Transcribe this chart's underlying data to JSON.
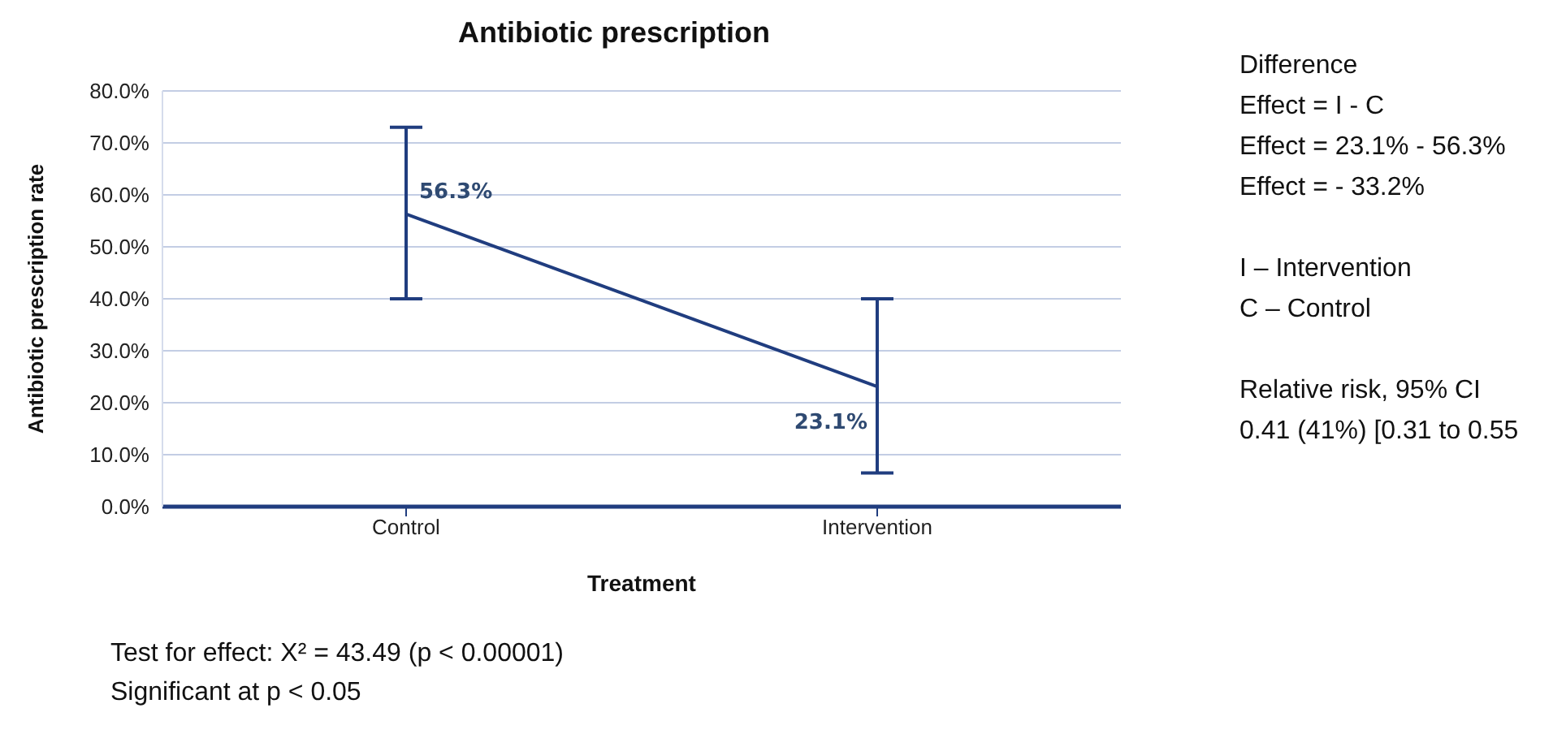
{
  "chart_data": {
    "type": "line",
    "title": "Antibiotic prescription",
    "xlabel": "Treatment",
    "ylabel": "Antibiotic prescription rate",
    "categories": [
      "Control",
      "Intervention"
    ],
    "series": [
      {
        "color": "#203d7f",
        "values": [
          56.3,
          23.1
        ],
        "errors": [
          [
            40,
            73
          ],
          [
            6.5,
            40
          ]
        ],
        "value_labels": [
          "56.3%",
          "23.1%"
        ]
      }
    ],
    "ylim": [
      0,
      80
    ],
    "yticks": [
      {
        "value": 0,
        "label": "0.0%"
      },
      {
        "value": 10,
        "label": "10.0%"
      },
      {
        "value": 20,
        "label": "20.0%"
      },
      {
        "value": 30,
        "label": "30.0%"
      },
      {
        "value": 40,
        "label": "40.0%"
      },
      {
        "value": 50,
        "label": "50.0%"
      },
      {
        "value": 60,
        "label": "60.0%"
      },
      {
        "value": 70,
        "label": "70.0%"
      },
      {
        "value": 80,
        "label": "80.0%"
      }
    ],
    "grid": "y",
    "marker": "none",
    "line_style": "solid",
    "annotations": [
      "Difference",
      "Effect = I - C",
      "Effect = 23.1% - 56.3%",
      "Effect = - 33.2%",
      "I – Intervention",
      "C – Control",
      "Relative risk, 95% CI",
      "0.41 (41%) [0.31 to 0.55",
      "Test for effect: X² = 43.49 (p < 0.00001)",
      "Significant at p < 0.05"
    ]
  }
}
